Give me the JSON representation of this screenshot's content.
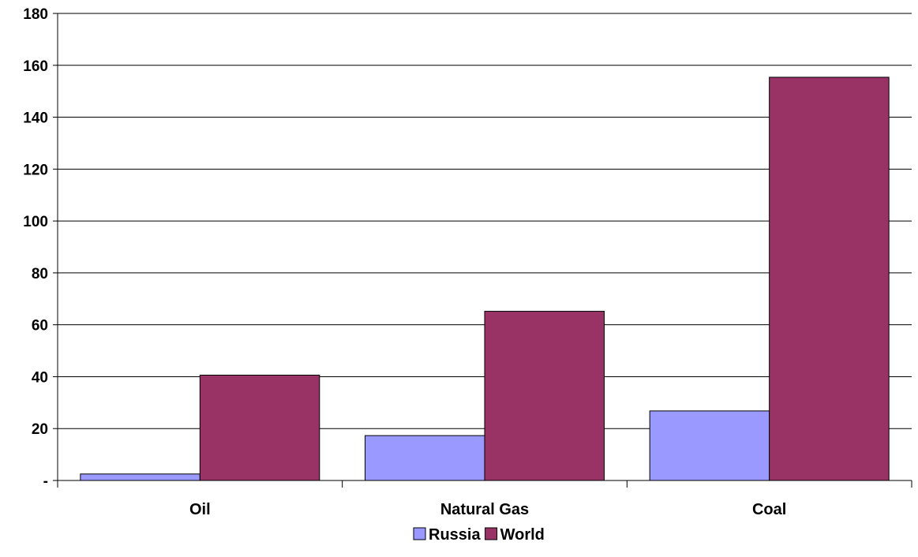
{
  "chart_data": {
    "type": "bar",
    "categories": [
      "Oil",
      "Natural Gas",
      "Coal"
    ],
    "series": [
      {
        "name": "Russia",
        "values": [
          2.5,
          17.3,
          26.8
        ],
        "color": "#9999ff"
      },
      {
        "name": "World",
        "values": [
          40.6,
          65.2,
          155.4
        ],
        "color": "#993366"
      }
    ],
    "title": "",
    "xlabel": "",
    "ylabel": "",
    "ylim": [
      0,
      180
    ],
    "yticks": [
      0,
      20,
      40,
      60,
      80,
      100,
      120,
      140,
      160,
      180
    ],
    "ytick_labels": [
      "-",
      "20",
      "40",
      "60",
      "80",
      "100",
      "120",
      "140",
      "160",
      "180"
    ],
    "grid": true,
    "legend_position": "bottom"
  }
}
